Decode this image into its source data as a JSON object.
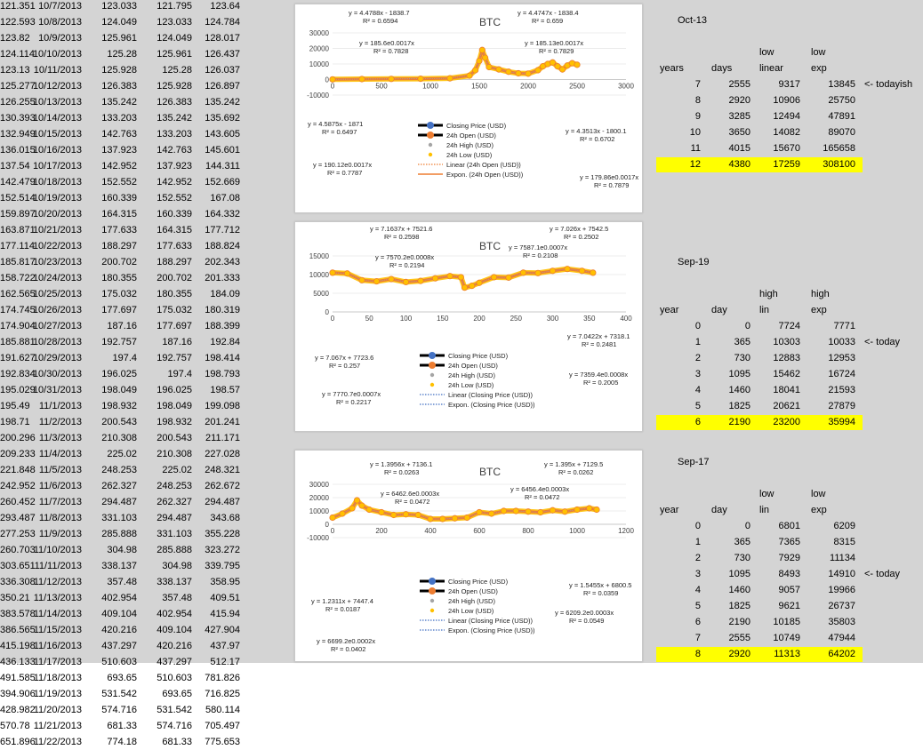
{
  "sheet": {
    "date_rows": [
      [
        "10/7/2013",
        "123.033",
        "121.795",
        "123.64",
        "121.351"
      ],
      [
        "10/8/2013",
        "124.049",
        "123.033",
        "124.784",
        "122.593"
      ],
      [
        "10/9/2013",
        "125.961",
        "124.049",
        "128.017",
        "123.82"
      ],
      [
        "10/10/2013",
        "125.28",
        "125.961",
        "126.437",
        "124.114"
      ],
      [
        "10/11/2013",
        "125.928",
        "125.28",
        "126.037",
        "123.13"
      ],
      [
        "10/12/2013",
        "126.383",
        "125.928",
        "126.897",
        "125.277"
      ],
      [
        "10/13/2013",
        "135.242",
        "126.383",
        "135.242",
        "126.255"
      ],
      [
        "10/14/2013",
        "133.203",
        "135.242",
        "135.692",
        "130.393"
      ],
      [
        "10/15/2013",
        "142.763",
        "133.203",
        "143.605",
        "132.949"
      ],
      [
        "10/16/2013",
        "137.923",
        "142.763",
        "145.601",
        "136.015"
      ],
      [
        "10/17/2013",
        "142.952",
        "137.923",
        "144.311",
        "137.54"
      ],
      [
        "10/18/2013",
        "152.552",
        "142.952",
        "152.669",
        "142.479"
      ],
      [
        "10/19/2013",
        "160.339",
        "152.552",
        "167.08",
        "152.514"
      ],
      [
        "10/20/2013",
        "164.315",
        "160.339",
        "164.332",
        "159.897"
      ],
      [
        "10/21/2013",
        "177.633",
        "164.315",
        "177.712",
        "163.871"
      ],
      [
        "10/22/2013",
        "188.297",
        "177.633",
        "188.824",
        "177.114"
      ],
      [
        "10/23/2013",
        "200.702",
        "188.297",
        "202.343",
        "185.817"
      ],
      [
        "10/24/2013",
        "180.355",
        "200.702",
        "201.333",
        "158.722"
      ],
      [
        "10/25/2013",
        "175.032",
        "180.355",
        "184.09",
        "162.565"
      ],
      [
        "10/26/2013",
        "177.697",
        "175.032",
        "180.319",
        "174.745"
      ],
      [
        "10/27/2013",
        "187.16",
        "177.697",
        "188.399",
        "174.904"
      ],
      [
        "10/28/2013",
        "192.757",
        "187.16",
        "192.84",
        "185.881"
      ],
      [
        "10/29/2013",
        "197.4",
        "192.757",
        "198.414",
        "191.627"
      ],
      [
        "10/30/2013",
        "196.025",
        "197.4",
        "198.793",
        "192.834"
      ],
      [
        "10/31/2013",
        "198.049",
        "196.025",
        "198.57",
        "195.029"
      ],
      [
        "11/1/2013",
        "198.932",
        "198.049",
        "199.098",
        "195.49"
      ],
      [
        "11/2/2013",
        "200.543",
        "198.932",
        "201.241",
        "198.71"
      ],
      [
        "11/3/2013",
        "210.308",
        "200.543",
        "211.171",
        "200.296"
      ],
      [
        "11/4/2013",
        "225.02",
        "210.308",
        "227.028",
        "209.233"
      ],
      [
        "11/5/2013",
        "248.253",
        "225.02",
        "248.321",
        "221.848"
      ],
      [
        "11/6/2013",
        "262.327",
        "248.253",
        "262.672",
        "242.952"
      ],
      [
        "11/7/2013",
        "294.487",
        "262.327",
        "294.487",
        "260.452"
      ],
      [
        "11/8/2013",
        "331.103",
        "294.487",
        "343.68",
        "293.487"
      ],
      [
        "11/9/2013",
        "285.888",
        "331.103",
        "355.228",
        "277.253"
      ],
      [
        "11/10/2013",
        "304.98",
        "285.888",
        "323.272",
        "260.703"
      ],
      [
        "11/11/2013",
        "338.137",
        "304.98",
        "339.795",
        "303.651"
      ],
      [
        "11/12/2013",
        "357.48",
        "338.137",
        "358.95",
        "336.308"
      ],
      [
        "11/13/2013",
        "402.954",
        "357.48",
        "409.51",
        "350.21"
      ],
      [
        "11/14/2013",
        "409.104",
        "402.954",
        "415.94",
        "383.578"
      ],
      [
        "11/15/2013",
        "420.216",
        "409.104",
        "427.904",
        "386.565"
      ],
      [
        "11/16/2013",
        "437.297",
        "420.216",
        "437.97",
        "415.198"
      ],
      [
        "11/17/2013",
        "510.603",
        "437.297",
        "512.17",
        "436.133"
      ],
      [
        "11/18/2013",
        "693.65",
        "510.603",
        "781.826",
        "491.585"
      ],
      [
        "11/19/2013",
        "531.542",
        "693.65",
        "716.825",
        "394.906"
      ],
      [
        "11/20/2013",
        "574.716",
        "531.542",
        "580.114",
        "428.982"
      ],
      [
        "11/21/2013",
        "681.33",
        "574.716",
        "705.497",
        "570.78"
      ],
      [
        "11/22/2013",
        "774.18",
        "681.33",
        "775.653",
        "651.896"
      ]
    ],
    "oct13": {
      "title": "Oct-13",
      "hdr1": [
        "",
        "",
        "low",
        "low"
      ],
      "hdr2": [
        "years",
        "days",
        "linear",
        "exp"
      ],
      "rows": [
        [
          "7",
          "2555",
          "9317",
          "13845"
        ],
        [
          "8",
          "2920",
          "10906",
          "25750"
        ],
        [
          "9",
          "3285",
          "12494",
          "47891"
        ],
        [
          "10",
          "3650",
          "14082",
          "89070"
        ],
        [
          "11",
          "4015",
          "15670",
          "165658"
        ],
        [
          "12",
          "4380",
          "17259",
          "308100"
        ]
      ],
      "note": "<- todayish",
      "note_row": 0,
      "highlight_row": 5
    },
    "sep19": {
      "title": "Sep-19",
      "hdr1": [
        "",
        "",
        "high",
        "high"
      ],
      "hdr2": [
        "year",
        "day",
        "lin",
        "exp"
      ],
      "rows": [
        [
          "0",
          "0",
          "7724",
          "7771"
        ],
        [
          "1",
          "365",
          "10303",
          "10033"
        ],
        [
          "2",
          "730",
          "12883",
          "12953"
        ],
        [
          "3",
          "1095",
          "15462",
          "16724"
        ],
        [
          "4",
          "1460",
          "18041",
          "21593"
        ],
        [
          "5",
          "1825",
          "20621",
          "27879"
        ],
        [
          "6",
          "2190",
          "23200",
          "35994"
        ]
      ],
      "note": "<- today",
      "note_row": 1,
      "highlight_row": 6
    },
    "sep17": {
      "title": "Sep-17",
      "hdr1": [
        "",
        "",
        "low",
        "low"
      ],
      "hdr2": [
        "year",
        "day",
        "lin",
        "exp"
      ],
      "rows": [
        [
          "0",
          "0",
          "6801",
          "6209"
        ],
        [
          "1",
          "365",
          "7365",
          "8315"
        ],
        [
          "2",
          "730",
          "7929",
          "11134"
        ],
        [
          "3",
          "1095",
          "8493",
          "14910"
        ],
        [
          "4",
          "1460",
          "9057",
          "19966"
        ],
        [
          "5",
          "1825",
          "9621",
          "26737"
        ],
        [
          "6",
          "2190",
          "10185",
          "35803"
        ],
        [
          "7",
          "2555",
          "10749",
          "47944"
        ],
        [
          "8",
          "2920",
          "11313",
          "64202"
        ]
      ],
      "note": "<- today",
      "note_row": 3,
      "highlight_row": 8
    }
  },
  "colors": {
    "highlight": "#ffff00",
    "closing": "#4472c4",
    "open": "#ed7d31",
    "high": "#a5a5a5",
    "low": "#ffc000",
    "grid": "#d9d9d9"
  },
  "chart_data": [
    {
      "type": "scatter",
      "title": "BTC",
      "xlim": [
        0,
        3000
      ],
      "ylim": [
        -10000,
        30000
      ],
      "x_ticks": [
        "0",
        "500",
        "1000",
        "1500",
        "2000",
        "2500",
        "3000"
      ],
      "y_ticks": [
        "30000",
        "20000",
        "10000",
        "0",
        "-10000"
      ],
      "series": [
        {
          "name": "Closing Price (USD)",
          "color": "#4472c4",
          "marker": "line-dot"
        },
        {
          "name": "24h Open (USD)",
          "color": "#ed7d31",
          "marker": "line-dot"
        },
        {
          "name": "24h High (USD)",
          "color": "#a5a5a5",
          "marker": "dot"
        },
        {
          "name": "24h Low (USD)",
          "color": "#ffc000",
          "marker": "dot"
        },
        {
          "name": "Linear (24h Open (USD))",
          "color": "#ed7d31",
          "marker": "dotted"
        },
        {
          "name": "Expon. (24h Open (USD))",
          "color": "#ed7d31",
          "marker": "solid"
        }
      ],
      "trendlines": [
        [
          "y = 4.4788x - 1838.7",
          "R² = 0.6594"
        ],
        [
          "y = 4.4747x - 1838.4",
          "R² = 0.659"
        ],
        [
          "y = 185.6e0.0017x",
          "R² = 0.7828"
        ],
        [
          "y = 185.13e0.0017x",
          "R² = 0.7829"
        ],
        [
          "y = 4.5875x - 1871",
          "R² = 0.6497"
        ],
        [
          "y = 4.3513x - 1800.1",
          "R² = 0.6702"
        ],
        [
          "y = 190.12e0.0017x",
          "R² = 0.7787"
        ],
        [
          "y = 179.86e0.0017x",
          "R² = 0.7879"
        ]
      ],
      "approx_points": [
        [
          0,
          100
        ],
        [
          300,
          300
        ],
        [
          600,
          400
        ],
        [
          900,
          500
        ],
        [
          1200,
          800
        ],
        [
          1400,
          2500
        ],
        [
          1460,
          6000
        ],
        [
          1500,
          12000
        ],
        [
          1530,
          19000
        ],
        [
          1560,
          14000
        ],
        [
          1600,
          8000
        ],
        [
          1700,
          6500
        ],
        [
          1800,
          5000
        ],
        [
          1900,
          4000
        ],
        [
          2000,
          3800
        ],
        [
          2100,
          6000
        ],
        [
          2150,
          8500
        ],
        [
          2200,
          10000
        ],
        [
          2250,
          11000
        ],
        [
          2300,
          8500
        ],
        [
          2350,
          6500
        ],
        [
          2400,
          9000
        ],
        [
          2450,
          10500
        ],
        [
          2500,
          9500
        ]
      ]
    },
    {
      "type": "scatter",
      "title": "BTC",
      "xlim": [
        0,
        400
      ],
      "ylim": [
        0,
        15000
      ],
      "x_ticks": [
        "0",
        "50",
        "100",
        "150",
        "200",
        "250",
        "300",
        "350",
        "400"
      ],
      "y_ticks": [
        "15000",
        "10000",
        "5000",
        "0"
      ],
      "series": [
        {
          "name": "Closing Price (USD)",
          "color": "#4472c4",
          "marker": "line-dot"
        },
        {
          "name": "24h Open (USD)",
          "color": "#ed7d31",
          "marker": "line-dot"
        },
        {
          "name": "24h High (USD)",
          "color": "#a5a5a5",
          "marker": "dot"
        },
        {
          "name": "24h Low (USD)",
          "color": "#ffc000",
          "marker": "dot"
        },
        {
          "name": "Linear (Closing Price (USD))",
          "color": "#4472c4",
          "marker": "dotted"
        },
        {
          "name": "Expon. (Closing Price (USD))",
          "color": "#4472c4",
          "marker": "dotted"
        }
      ],
      "trendlines": [
        [
          "y = 7.1637x + 7521.6",
          "R² = 0.2598"
        ],
        [
          "y = 7.026x + 7542.5",
          "R² = 0.2502"
        ],
        [
          "y = 7570.2e0.0008x",
          "R² = 0.2194"
        ],
        [
          "y = 7587.1e0.0007x",
          "R² = 0.2108"
        ],
        [
          "y = 7.067x + 7723.6",
          "R² = 0.257"
        ],
        [
          "y = 7.0422x + 7318.1",
          "R² = 0.2481"
        ],
        [
          "y = 7770.7e0.0007x",
          "R² = 0.2217"
        ],
        [
          "y = 7359.4e0.0008x",
          "R² = 0.2005"
        ]
      ],
      "approx_points": [
        [
          0,
          10500
        ],
        [
          20,
          10300
        ],
        [
          40,
          8500
        ],
        [
          60,
          8200
        ],
        [
          80,
          8800
        ],
        [
          100,
          8000
        ],
        [
          120,
          8300
        ],
        [
          140,
          9000
        ],
        [
          160,
          9600
        ],
        [
          175,
          9300
        ],
        [
          180,
          6500
        ],
        [
          190,
          7000
        ],
        [
          200,
          7800
        ],
        [
          220,
          9300
        ],
        [
          240,
          9200
        ],
        [
          260,
          10500
        ],
        [
          280,
          10400
        ],
        [
          300,
          11000
        ],
        [
          320,
          11500
        ],
        [
          340,
          11000
        ],
        [
          355,
          10500
        ]
      ]
    },
    {
      "type": "scatter",
      "title": "BTC",
      "xlim": [
        0,
        1200
      ],
      "ylim": [
        -10000,
        30000
      ],
      "x_ticks": [
        "0",
        "200",
        "400",
        "600",
        "800",
        "1000",
        "1200"
      ],
      "y_ticks": [
        "30000",
        "20000",
        "10000",
        "0",
        "-10000"
      ],
      "series": [
        {
          "name": "Closing Price (USD)",
          "color": "#4472c4",
          "marker": "line-dot"
        },
        {
          "name": "24h Open (USD)",
          "color": "#ed7d31",
          "marker": "line-dot"
        },
        {
          "name": "24h High (USD)",
          "color": "#a5a5a5",
          "marker": "dot"
        },
        {
          "name": "24h Low (USD)",
          "color": "#ffc000",
          "marker": "dot"
        },
        {
          "name": "Linear (Closing Price (USD))",
          "color": "#4472c4",
          "marker": "dotted"
        },
        {
          "name": "Expon. (Closing Price (USD))",
          "color": "#4472c4",
          "marker": "dotted"
        }
      ],
      "trendlines": [
        [
          "y = 1.3956x + 7136.1",
          "R² = 0.0263"
        ],
        [
          "y = 1.395x + 7129.5",
          "R² = 0.0262"
        ],
        [
          "y = 6462.6e0.0003x",
          "R² = 0.0472"
        ],
        [
          "y = 6456.4e0.0003x",
          "R² = 0.0472"
        ],
        [
          "y = 1.2311x + 7447.4",
          "R² = 0.0187"
        ],
        [
          "y = 1.5455x + 6800.5",
          "R² = 0.0359"
        ],
        [
          "y = 6699.2e0.0002x",
          "R² = 0.0402"
        ],
        [
          "y = 6209.2e0.0003x",
          "R² = 0.0549"
        ]
      ],
      "approx_points": [
        [
          0,
          5000
        ],
        [
          40,
          8000
        ],
        [
          80,
          12000
        ],
        [
          100,
          18000
        ],
        [
          120,
          14000
        ],
        [
          150,
          11000
        ],
        [
          200,
          9000
        ],
        [
          250,
          7000
        ],
        [
          300,
          7500
        ],
        [
          350,
          7000
        ],
        [
          400,
          4000
        ],
        [
          450,
          4000
        ],
        [
          500,
          4500
        ],
        [
          550,
          5000
        ],
        [
          600,
          9000
        ],
        [
          650,
          8000
        ],
        [
          700,
          10000
        ],
        [
          750,
          10000
        ],
        [
          800,
          9500
        ],
        [
          850,
          9000
        ],
        [
          900,
          10500
        ],
        [
          950,
          9500
        ],
        [
          1000,
          11000
        ],
        [
          1050,
          12000
        ],
        [
          1080,
          11000
        ]
      ]
    }
  ]
}
